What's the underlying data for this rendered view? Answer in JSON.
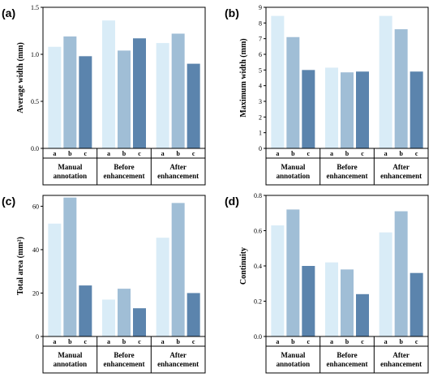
{
  "colors": {
    "a": "#d9ecf7",
    "b": "#a0bed6",
    "c": "#5b84ad"
  },
  "chart_data": [
    {
      "type": "bar",
      "panel_label": "(a)",
      "ylabel": "Average width (mm)",
      "ylim": [
        0,
        1.5
      ],
      "yticks": [
        "0.0",
        "0.5",
        "1.0",
        "1.5"
      ],
      "ytick_values": [
        0,
        0.5,
        1.0,
        1.5
      ],
      "groups": [
        "Manual annotation",
        "Before enhancement",
        "After enhancement"
      ],
      "group_lines": [
        [
          "Manual",
          "annotation"
        ],
        [
          "Before",
          "enhancement"
        ],
        [
          "After",
          "enhancement"
        ]
      ],
      "categories": [
        "a",
        "b",
        "c"
      ],
      "series": [
        {
          "values": [
            1.08,
            1.19,
            0.98
          ]
        },
        {
          "values": [
            1.36,
            1.04,
            1.17
          ]
        },
        {
          "values": [
            1.12,
            1.22,
            0.9
          ]
        }
      ]
    },
    {
      "type": "bar",
      "panel_label": "(b)",
      "ylabel": "Maximum width (mm)",
      "ylim": [
        0,
        9
      ],
      "yticks": [
        "0",
        "1",
        "2",
        "3",
        "4",
        "5",
        "6",
        "7",
        "8",
        "9"
      ],
      "ytick_values": [
        0,
        1,
        2,
        3,
        4,
        5,
        6,
        7,
        8,
        9
      ],
      "groups": [
        "Manual annotation",
        "Before enhancement",
        "After enhancement"
      ],
      "group_lines": [
        [
          "Manual",
          "annotation"
        ],
        [
          "Before",
          "enhancement"
        ],
        [
          "After",
          "enhancement"
        ]
      ],
      "categories": [
        "a",
        "b",
        "c"
      ],
      "series": [
        {
          "values": [
            8.45,
            7.1,
            5.0
          ]
        },
        {
          "values": [
            5.15,
            4.85,
            4.9
          ]
        },
        {
          "values": [
            8.45,
            7.6,
            4.9
          ]
        }
      ]
    },
    {
      "type": "bar",
      "panel_label": "(c)",
      "ylabel": "Total area (mm²)",
      "ylim": [
        0,
        65
      ],
      "yticks": [
        "0",
        "20",
        "40",
        "60"
      ],
      "ytick_values": [
        0,
        20,
        40,
        60
      ],
      "groups": [
        "Manual annotation",
        "Before enhancement",
        "After enhancement"
      ],
      "group_lines": [
        [
          "Manual",
          "annotation"
        ],
        [
          "Before",
          "enhancement"
        ],
        [
          "After",
          "enhancement"
        ]
      ],
      "categories": [
        "a",
        "b",
        "c"
      ],
      "series": [
        {
          "values": [
            52,
            64,
            23.5
          ]
        },
        {
          "values": [
            17,
            22,
            13
          ]
        },
        {
          "values": [
            45.5,
            61.5,
            20
          ]
        }
      ]
    },
    {
      "type": "bar",
      "panel_label": "(d)",
      "ylabel": "Continuity",
      "ylim": [
        0,
        0.8
      ],
      "yticks": [
        "0.0",
        "0.2",
        "0.4",
        "0.6",
        "0.8"
      ],
      "ytick_values": [
        0,
        0.2,
        0.4,
        0.6,
        0.8
      ],
      "groups": [
        "Manual annotation",
        "Before enhancement",
        "After enhancement"
      ],
      "group_lines": [
        [
          "Manual",
          "annotation"
        ],
        [
          "Before",
          "enhancement"
        ],
        [
          "After",
          "enhancement"
        ]
      ],
      "categories": [
        "a",
        "b",
        "c"
      ],
      "series": [
        {
          "values": [
            0.63,
            0.72,
            0.4
          ]
        },
        {
          "values": [
            0.42,
            0.38,
            0.24
          ]
        },
        {
          "values": [
            0.59,
            0.71,
            0.36
          ]
        }
      ]
    }
  ]
}
